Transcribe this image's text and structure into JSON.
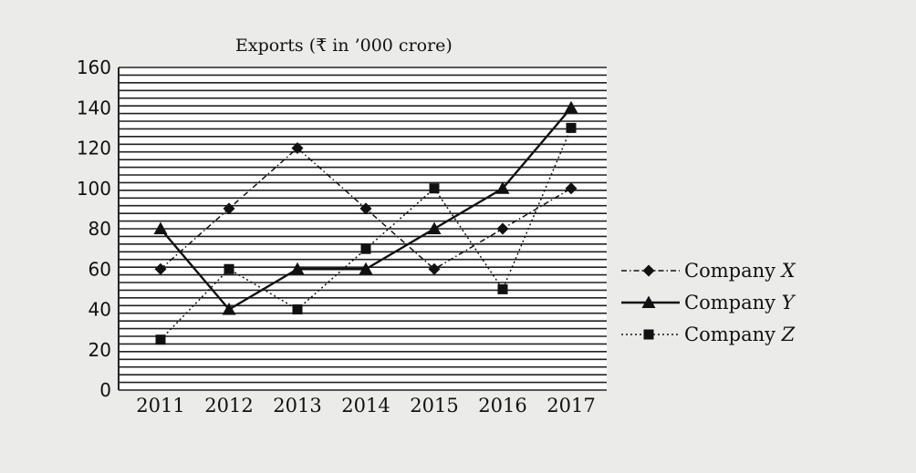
{
  "chart_data": {
    "type": "line",
    "title": "Exports (₹ in ’000 crore)",
    "xlabel": "",
    "ylabel": "",
    "categories": [
      "2011",
      "2012",
      "2013",
      "2014",
      "2015",
      "2016",
      "2017"
    ],
    "ylim": [
      0,
      160
    ],
    "yticks": [
      0,
      20,
      40,
      60,
      80,
      100,
      120,
      140,
      160
    ],
    "grid": true,
    "legend_position": "right",
    "series": [
      {
        "name": "Company X",
        "name_prefix": "Company ",
        "name_var": "X",
        "marker": "diamond",
        "line_style": "dotted-dashed",
        "values": [
          60,
          90,
          120,
          90,
          60,
          80,
          100
        ]
      },
      {
        "name": "Company Y",
        "name_prefix": "Company ",
        "name_var": "Y",
        "marker": "triangle",
        "line_style": "solid",
        "values": [
          80,
          40,
          60,
          60,
          80,
          100,
          140
        ]
      },
      {
        "name": "Company Z",
        "name_prefix": "Company ",
        "name_var": "Z",
        "marker": "square",
        "line_style": "dotted",
        "values": [
          25,
          60,
          40,
          70,
          100,
          50,
          130
        ]
      }
    ]
  }
}
